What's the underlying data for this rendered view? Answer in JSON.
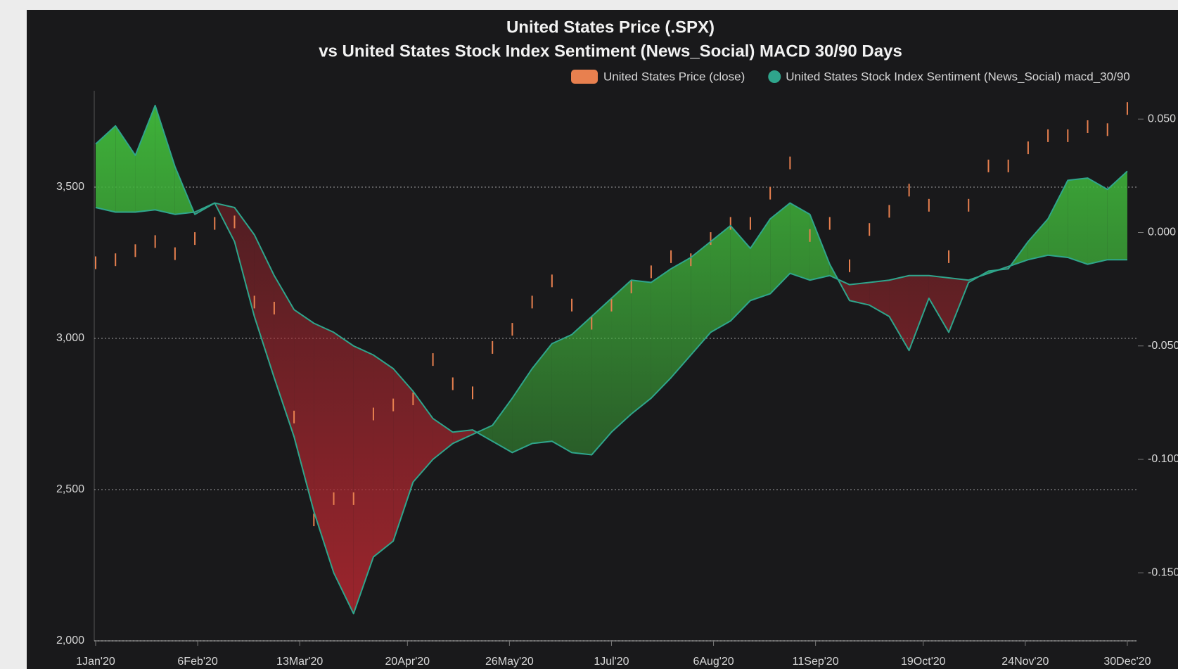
{
  "chart_data": {
    "type": "combo",
    "title": "United States Price (.SPX)",
    "subtitle": "vs United States Stock Index Sentiment (News_Social) MACD 30/90 Days",
    "x": [
      "2020-01-01",
      "2020-01-08",
      "2020-01-15",
      "2020-01-22",
      "2020-01-29",
      "2020-02-05",
      "2020-02-12",
      "2020-02-19",
      "2020-02-26",
      "2020-03-04",
      "2020-03-11",
      "2020-03-18",
      "2020-03-25",
      "2020-04-01",
      "2020-04-08",
      "2020-04-15",
      "2020-04-22",
      "2020-04-29",
      "2020-05-06",
      "2020-05-13",
      "2020-05-20",
      "2020-05-27",
      "2020-06-03",
      "2020-06-10",
      "2020-06-17",
      "2020-06-24",
      "2020-07-01",
      "2020-07-08",
      "2020-07-15",
      "2020-07-22",
      "2020-07-29",
      "2020-08-05",
      "2020-08-12",
      "2020-08-19",
      "2020-08-26",
      "2020-09-02",
      "2020-09-09",
      "2020-09-16",
      "2020-09-23",
      "2020-09-30",
      "2020-10-07",
      "2020-10-14",
      "2020-10-21",
      "2020-10-28",
      "2020-11-04",
      "2020-11-11",
      "2020-11-18",
      "2020-11-25",
      "2020-12-02",
      "2020-12-09",
      "2020-12-16",
      "2020-12-23",
      "2020-12-30"
    ],
    "series": [
      {
        "name": "United States Price (close)",
        "type": "ohlc",
        "color": "#e8804f",
        "values": [
          3250,
          3260,
          3290,
          3320,
          3280,
          3330,
          3380,
          3385,
          3120,
          3100,
          2740,
          2400,
          2470,
          2470,
          2750,
          2780,
          2800,
          2930,
          2850,
          2820,
          2970,
          3030,
          3120,
          3190,
          3110,
          3050,
          3110,
          3170,
          3220,
          3270,
          3260,
          3330,
          3380,
          3380,
          3480,
          3580,
          3340,
          3380,
          3240,
          3360,
          3420,
          3490,
          3440,
          3270,
          3440,
          3570,
          3570,
          3630,
          3670,
          3670,
          3700,
          3690,
          3760
        ]
      },
      {
        "name": "United States Stock Index Sentiment (News_Social) macd_30/90",
        "type": "line",
        "axis": "y2",
        "color": "#2fa58c",
        "fill_above": "#3fb43a",
        "fill_below": "#a8262e",
        "values": [
          0.039,
          0.047,
          0.034,
          0.056,
          0.029,
          0.008,
          0.013,
          -0.004,
          -0.037,
          -0.064,
          -0.09,
          -0.123,
          -0.15,
          -0.168,
          -0.143,
          -0.136,
          -0.11,
          -0.1,
          -0.093,
          -0.089,
          -0.085,
          -0.073,
          -0.06,
          -0.049,
          -0.045,
          -0.037,
          -0.029,
          -0.021,
          -0.022,
          -0.016,
          -0.011,
          -0.004,
          0.003,
          -0.007,
          0.006,
          0.013,
          0.008,
          -0.014,
          -0.03,
          -0.032,
          -0.037,
          -0.052,
          -0.029,
          -0.044,
          -0.022,
          -0.017,
          -0.016,
          -0.004,
          0.006,
          0.023,
          0.024,
          0.019,
          0.027
        ]
      },
      {
        "type": "line",
        "axis": "y2",
        "color": "#2fa58c",
        "values": [
          0.011,
          0.009,
          0.009,
          0.01,
          0.008,
          0.009,
          0.013,
          0.011,
          -0.001,
          -0.019,
          -0.034,
          -0.04,
          -0.044,
          -0.05,
          -0.054,
          -0.06,
          -0.07,
          -0.082,
          -0.088,
          -0.087,
          -0.092,
          -0.097,
          -0.093,
          -0.092,
          -0.097,
          -0.098,
          -0.088,
          -0.08,
          -0.073,
          -0.064,
          -0.054,
          -0.044,
          -0.039,
          -0.03,
          -0.027,
          -0.018,
          -0.021,
          -0.019,
          -0.023,
          -0.022,
          -0.021,
          -0.019,
          -0.019,
          -0.02,
          -0.021,
          -0.018,
          -0.015,
          -0.012,
          -0.01,
          -0.011,
          -0.014,
          -0.012,
          -0.012
        ]
      }
    ],
    "xlim": [
      "2020-01-01",
      "2021-01-01"
    ],
    "xticks": [
      {
        "value": "2020-01-01",
        "label": "1Jan'20"
      },
      {
        "value": "2020-02-06",
        "label": "6Feb'20"
      },
      {
        "value": "2020-03-13",
        "label": "13Mar'20"
      },
      {
        "value": "2020-04-20",
        "label": "20Apr'20"
      },
      {
        "value": "2020-05-26",
        "label": "26May'20"
      },
      {
        "value": "2020-07-01",
        "label": "1Jul'20"
      },
      {
        "value": "2020-08-06",
        "label": "6Aug'20"
      },
      {
        "value": "2020-09-11",
        "label": "11Sep'20"
      },
      {
        "value": "2020-10-19",
        "label": "19Oct'20"
      },
      {
        "value": "2020-11-24",
        "label": "24Nov'20"
      },
      {
        "value": "2020-12-30",
        "label": "30Dec'20"
      }
    ],
    "ylim": [
      2000,
      3800
    ],
    "yticks": [
      {
        "value": 2000,
        "label": "2,000"
      },
      {
        "value": 2500,
        "label": "2,500"
      },
      {
        "value": 3000,
        "label": "3,000"
      },
      {
        "value": 3500,
        "label": "3,500"
      }
    ],
    "y2lim": [
      -0.18,
      0.06
    ],
    "y2ticks": [
      {
        "value": 0.05,
        "label": "0.050"
      },
      {
        "value": 0,
        "label": "0.000"
      },
      {
        "value": -0.05,
        "label": "-0.050"
      },
      {
        "value": -0.1,
        "label": "-0.100"
      },
      {
        "value": -0.15,
        "label": "-0.150"
      }
    ],
    "grid": true
  }
}
